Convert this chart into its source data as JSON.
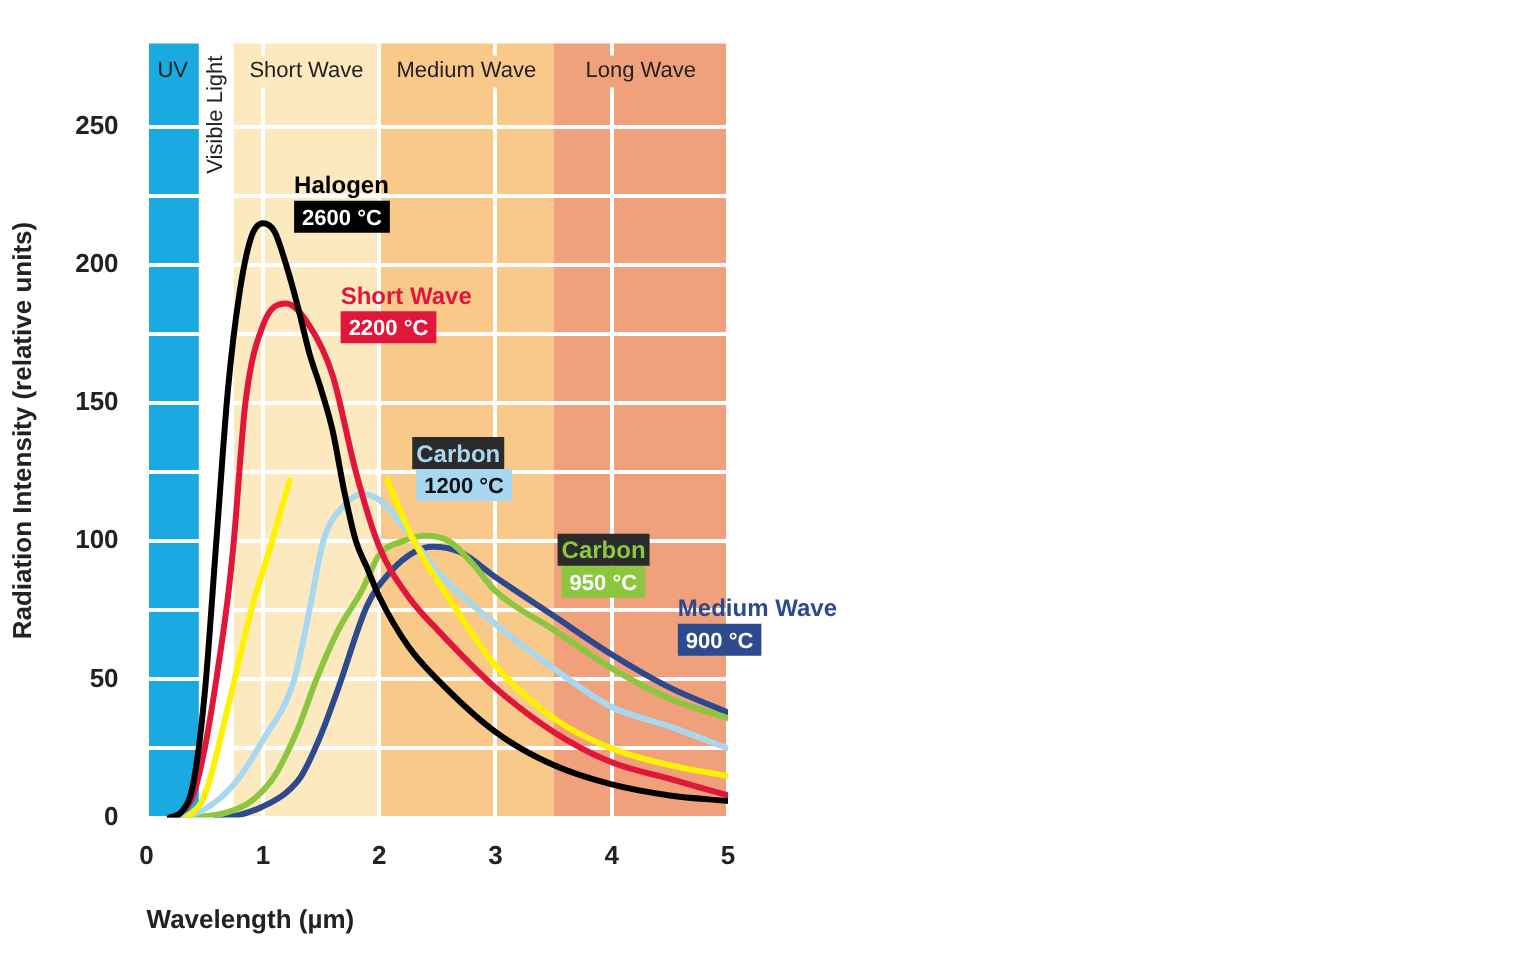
{
  "chart_data": {
    "type": "line",
    "xlabel": "Wavelength (µm)",
    "ylabel": "Radiation Intensity (relative units)",
    "xlim": [
      0,
      5
    ],
    "xticks": [
      0,
      1,
      2,
      3,
      4,
      5
    ],
    "ylim": [
      0,
      280
    ],
    "yticks": [
      0,
      {
        "value": 25,
        "label": null
      },
      50,
      {
        "value": 75,
        "label": null
      },
      100,
      {
        "value": 125,
        "label": null
      },
      150,
      {
        "value": 175,
        "label": null
      },
      200,
      {
        "value": 225,
        "label": null
      },
      250
    ],
    "grid": true,
    "legend": false,
    "marker": "none",
    "line_style": "solid",
    "bands": [
      {
        "axis": "x",
        "from": 0,
        "to": 0.45,
        "label": "UV",
        "color": "#1aa9e0"
      },
      {
        "axis": "x",
        "from": 0.45,
        "to": 0.75,
        "label": "Visible Light",
        "color": "#ffffff"
      },
      {
        "axis": "x",
        "from": 0.75,
        "to": 2,
        "label": "Short Wave",
        "color": "#fde9c0"
      },
      {
        "axis": "x",
        "from": 2,
        "to": 3.5,
        "label": "Medium Wave",
        "color": "#f9c98a"
      },
      {
        "axis": "x",
        "from": 3.5,
        "to": 5,
        "label": "Long Wave",
        "color": "#f0a07a"
      }
    ],
    "series": [
      {
        "name": "Halogen",
        "color": "#000000",
        "x": [
          0.2,
          0.3,
          0.4,
          0.5,
          0.6,
          0.7,
          0.8,
          0.9,
          1.0,
          1.1,
          1.2,
          1.3,
          1.4,
          1.5,
          1.6,
          1.7,
          1.8,
          1.9,
          2.0,
          2.25,
          2.5,
          3,
          3.5,
          4,
          4.5,
          5
        ],
        "values": [
          0,
          2,
          12,
          45,
          100,
          155,
          190,
          210,
          215,
          212,
          200,
          185,
          168,
          155,
          140,
          118,
          100,
          90,
          80,
          62,
          50,
          31,
          19,
          12,
          8,
          6
        ]
      },
      {
        "name": "Short Wave",
        "color": "#e0173a",
        "x": [
          0.25,
          0.4,
          0.5,
          0.6,
          0.7,
          0.75,
          0.85,
          1.0,
          1.2,
          1.4,
          1.6,
          1.8,
          2.0,
          2.25,
          2.5,
          3,
          3.5,
          4,
          4.5,
          5
        ],
        "values": [
          0,
          8,
          25,
          50,
          80,
          100,
          150,
          178,
          186,
          178,
          160,
          125,
          98,
          80,
          68,
          47,
          31,
          20,
          14,
          8
        ]
      },
      {
        "color": "#fff200",
        "x": [
          0.35,
          0.5,
          0.7,
          0.9,
          1.08,
          1.23,
          1.6,
          2.07,
          2.3,
          2.62,
          3,
          3.5,
          4,
          4.5,
          5
        ],
        "values": [
          0,
          8,
          40,
          75,
          100,
          122,
          null,
          122,
          100,
          78,
          55,
          36,
          25,
          19,
          15
        ]
      },
      {
        "name": "Carbon",
        "color": "#a8d8f0",
        "x": [
          0.3,
          0.5,
          0.75,
          1.0,
          1.27,
          1.4,
          1.52,
          1.7,
          1.85,
          2.0,
          2.25,
          2.5,
          3,
          3.5,
          4,
          4.5,
          5
        ],
        "values": [
          0,
          3,
          12,
          28,
          50,
          75,
          100,
          113,
          117,
          115,
          103,
          89,
          70,
          54,
          40,
          33,
          25
        ]
      },
      {
        "name": "Carbon",
        "color": "#8cc63f",
        "x": [
          0.2,
          0.5,
          0.7,
          0.9,
          1.1,
          1.3,
          1.46,
          1.65,
          1.85,
          2.0,
          2.2,
          2.4,
          2.6,
          2.8,
          3.0,
          3.5,
          4,
          4.5,
          5
        ],
        "values": [
          0,
          0.5,
          2,
          6,
          15,
          32,
          50,
          68,
          82,
          95,
          100,
          102,
          100,
          92,
          82,
          68,
          54,
          43,
          36
        ]
      },
      {
        "name": "Medium Wave",
        "color": "#2e4a8f",
        "x": [
          0.6,
          0.8,
          1.0,
          1.2,
          1.33,
          1.5,
          1.65,
          1.9,
          2.1,
          2.3,
          2.46,
          2.7,
          3,
          3.5,
          4,
          4.5,
          5
        ],
        "values": [
          0,
          1,
          4,
          9,
          15,
          30,
          47,
          77,
          89,
          96,
          98,
          96,
          87,
          73,
          59,
          47,
          38
        ]
      }
    ],
    "annotations": [
      {
        "text": "2600 °C",
        "x": 1.2,
        "y": 200
      },
      {
        "text": "2200 °C",
        "x": 1.6,
        "y": 160
      },
      {
        "text": "1200 °C",
        "x": 2.25,
        "y": 103
      },
      {
        "text": "950 °C",
        "x": 3.5,
        "y": 68
      },
      {
        "text": "900 °C",
        "x": 4.5,
        "y": 47
      }
    ]
  }
}
